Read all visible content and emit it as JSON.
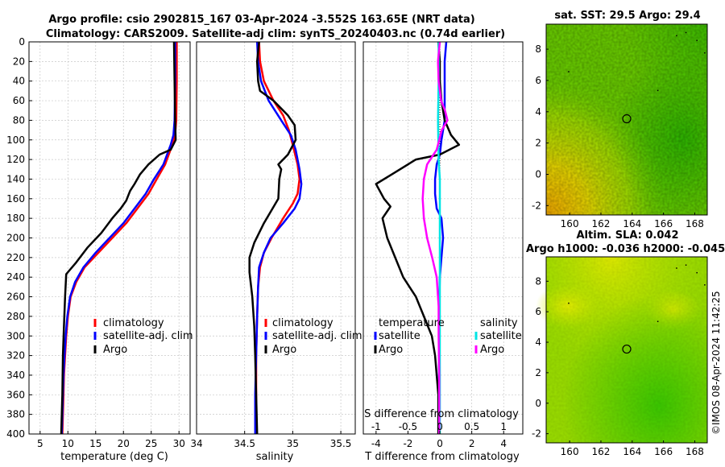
{
  "title": {
    "line1": "Argo profile: csio 2902815_167 03-Apr-2024 -3.552S 163.65E (NRT data)",
    "line2": "Climatology: CARS2009. Satellite-adj clim: synTS_20240403.nc (0.74d earlier)"
  },
  "colors": {
    "climatology": "#ff0000",
    "satellite": "#0000ff",
    "argo": "#000000",
    "sal_satellite": "#00e5e5",
    "sal_argo": "#ff00ff",
    "grid": "#c8c8c8"
  },
  "chart_data": [
    {
      "type": "line",
      "id": "temperature",
      "xlabel": "temperature (deg C)",
      "ylabel": "depth",
      "xlim": [
        3,
        32
      ],
      "ylim": [
        0,
        400
      ],
      "xticks": [
        5,
        10,
        15,
        20,
        25,
        30
      ],
      "xtick_labels": [
        "5",
        "10",
        "15",
        "20",
        "25",
        "30"
      ],
      "yticks": [
        0,
        20,
        40,
        60,
        80,
        100,
        120,
        140,
        160,
        180,
        200,
        220,
        240,
        260,
        280,
        300,
        320,
        340,
        360,
        380,
        400
      ],
      "legend": [
        "climatology",
        "satellite-adj. clim",
        "Argo"
      ],
      "series": [
        {
          "name": "climatology",
          "color": "#ff0000",
          "points": [
            [
              29.6,
              0
            ],
            [
              29.6,
              40
            ],
            [
              29.5,
              80
            ],
            [
              29.3,
              95
            ],
            [
              28.8,
              105
            ],
            [
              27.5,
              125
            ],
            [
              26,
              140
            ],
            [
              24.5,
              155
            ],
            [
              22.5,
              170
            ],
            [
              20.5,
              185
            ],
            [
              18,
              200
            ],
            [
              15.5,
              215
            ],
            [
              13,
              230
            ],
            [
              11.5,
              245
            ],
            [
              10.5,
              260
            ],
            [
              10,
              280
            ],
            [
              9.7,
              300
            ],
            [
              9.5,
              320
            ],
            [
              9.3,
              340
            ],
            [
              9.2,
              360
            ],
            [
              9.1,
              380
            ],
            [
              9,
              400
            ]
          ]
        },
        {
          "name": "satellite-adj. clim",
          "color": "#0000ff",
          "points": [
            [
              29.3,
              0
            ],
            [
              29.3,
              40
            ],
            [
              29.2,
              80
            ],
            [
              29,
              95
            ],
            [
              28.5,
              105
            ],
            [
              27.2,
              125
            ],
            [
              25.5,
              140
            ],
            [
              24,
              155
            ],
            [
              22,
              170
            ],
            [
              20,
              185
            ],
            [
              17.5,
              200
            ],
            [
              15,
              215
            ],
            [
              12.8,
              230
            ],
            [
              11.3,
              245
            ],
            [
              10.4,
              260
            ],
            [
              9.9,
              280
            ],
            [
              9.6,
              300
            ],
            [
              9.4,
              320
            ],
            [
              9.2,
              340
            ],
            [
              9.1,
              360
            ],
            [
              9,
              380
            ],
            [
              8.9,
              400
            ]
          ]
        },
        {
          "name": "Argo",
          "color": "#000000",
          "points": [
            [
              29.1,
              0
            ],
            [
              29.2,
              40
            ],
            [
              29.3,
              80
            ],
            [
              29.4,
              100
            ],
            [
              28.5,
              110
            ],
            [
              26.5,
              115
            ],
            [
              24.5,
              125
            ],
            [
              23,
              135
            ],
            [
              22,
              145
            ],
            [
              21.2,
              152
            ],
            [
              20.5,
              162
            ],
            [
              19.5,
              170
            ],
            [
              18,
              180
            ],
            [
              16,
              195
            ],
            [
              13.5,
              210
            ],
            [
              11.5,
              225
            ],
            [
              9.7,
              237
            ],
            [
              9.5,
              260
            ],
            [
              9.3,
              290
            ],
            [
              9.1,
              320
            ],
            [
              9,
              360
            ],
            [
              8.8,
              400
            ]
          ]
        }
      ]
    },
    {
      "type": "line",
      "id": "salinity",
      "xlabel": "salinity",
      "xlim": [
        34,
        35.65
      ],
      "ylim": [
        0,
        400
      ],
      "xticks": [
        34,
        34.5,
        35,
        35.5
      ],
      "xtick_labels": [
        "34",
        "34.5",
        "35",
        "35.5"
      ],
      "legend": [
        "climatology",
        "satellite-adj. clim",
        "Argo"
      ],
      "series": [
        {
          "name": "climatology",
          "color": "#ff0000",
          "points": [
            [
              34.65,
              0
            ],
            [
              34.66,
              20
            ],
            [
              34.7,
              40
            ],
            [
              34.8,
              60
            ],
            [
              34.9,
              75
            ],
            [
              34.96,
              90
            ],
            [
              35,
              105
            ],
            [
              35.05,
              125
            ],
            [
              35.07,
              140
            ],
            [
              35.05,
              155
            ],
            [
              35,
              165
            ],
            [
              34.9,
              180
            ],
            [
              34.78,
              200
            ],
            [
              34.7,
              215
            ],
            [
              34.66,
              230
            ],
            [
              34.64,
              250
            ],
            [
              34.63,
              280
            ],
            [
              34.62,
              320
            ],
            [
              34.62,
              360
            ],
            [
              34.62,
              400
            ]
          ]
        },
        {
          "name": "satellite-adj. clim",
          "color": "#0000ff",
          "points": [
            [
              34.63,
              0
            ],
            [
              34.64,
              20
            ],
            [
              34.67,
              40
            ],
            [
              34.75,
              60
            ],
            [
              34.88,
              80
            ],
            [
              34.98,
              95
            ],
            [
              35.03,
              110
            ],
            [
              35.07,
              130
            ],
            [
              35.09,
              145
            ],
            [
              35.07,
              160
            ],
            [
              35.02,
              170
            ],
            [
              34.9,
              185
            ],
            [
              34.77,
              200
            ],
            [
              34.7,
              215
            ],
            [
              34.65,
              230
            ],
            [
              34.64,
              250
            ],
            [
              34.63,
              280
            ],
            [
              34.62,
              320
            ],
            [
              34.61,
              360
            ],
            [
              34.61,
              400
            ]
          ]
        },
        {
          "name": "Argo",
          "color": "#000000",
          "points": [
            [
              34.65,
              0
            ],
            [
              34.63,
              20
            ],
            [
              34.64,
              40
            ],
            [
              34.66,
              50
            ],
            [
              34.8,
              60
            ],
            [
              34.95,
              75
            ],
            [
              35.02,
              85
            ],
            [
              35.03,
              100
            ],
            [
              34.95,
              115
            ],
            [
              34.85,
              125
            ],
            [
              34.88,
              130
            ],
            [
              34.86,
              140
            ],
            [
              34.85,
              160
            ],
            [
              34.7,
              185
            ],
            [
              34.6,
              205
            ],
            [
              34.55,
              220
            ],
            [
              34.55,
              235
            ],
            [
              34.58,
              260
            ],
            [
              34.6,
              290
            ],
            [
              34.61,
              320
            ],
            [
              34.62,
              360
            ],
            [
              34.63,
              400
            ]
          ]
        }
      ]
    },
    {
      "type": "line",
      "id": "difference",
      "xlabel": "T difference from climatology",
      "x2label": "S difference from climatology",
      "xlim": [
        -4.8,
        5.2
      ],
      "ylim": [
        0,
        400
      ],
      "xticks": [
        -4,
        -2,
        0,
        2,
        4
      ],
      "xtick_labels": [
        "-4",
        "-2",
        "0",
        "2",
        "4"
      ],
      "x2lim": [
        -1.2,
        1.3
      ],
      "x2ticks": [
        -1,
        -0.5,
        0,
        0.5,
        1
      ],
      "x2tick_labels": [
        "-1",
        "-0.5",
        "0",
        "0.5",
        "1"
      ],
      "legend_left_title": "temperature",
      "legend_right_title": "salinity",
      "legend_left": [
        "satellite",
        "Argo"
      ],
      "legend_right": [
        "satellite",
        "Argo"
      ],
      "series": [
        {
          "name": "T satellite",
          "axis": "T",
          "color": "#0000ff",
          "points": [
            [
              0.4,
              0
            ],
            [
              0.3,
              20
            ],
            [
              0.3,
              40
            ],
            [
              0.3,
              60
            ],
            [
              0.3,
              80
            ],
            [
              0.1,
              100
            ],
            [
              0,
              115
            ],
            [
              -0.2,
              125
            ],
            [
              -0.3,
              140
            ],
            [
              -0.3,
              155
            ],
            [
              -0.2,
              170
            ],
            [
              0.1,
              180
            ],
            [
              0.2,
              200
            ],
            [
              0.1,
              220
            ],
            [
              0,
              240
            ],
            [
              -0.05,
              280
            ],
            [
              -0.05,
              320
            ],
            [
              -0.05,
              400
            ]
          ]
        },
        {
          "name": "T Argo",
          "axis": "T",
          "color": "#000000",
          "points": [
            [
              -0.1,
              0
            ],
            [
              0,
              20
            ],
            [
              0,
              40
            ],
            [
              0.1,
              60
            ],
            [
              0.3,
              80
            ],
            [
              0.7,
              95
            ],
            [
              1.2,
              105
            ],
            [
              0,
              115
            ],
            [
              -1.5,
              120
            ],
            [
              -3,
              135
            ],
            [
              -4,
              145
            ],
            [
              -3.5,
              160
            ],
            [
              -3.1,
              168
            ],
            [
              -3.6,
              180
            ],
            [
              -3.3,
              200
            ],
            [
              -2.8,
              220
            ],
            [
              -2.3,
              240
            ],
            [
              -1.5,
              260
            ],
            [
              -1,
              280
            ],
            [
              -0.5,
              300
            ],
            [
              -0.3,
              320
            ],
            [
              -0.2,
              340
            ],
            [
              -0.1,
              360
            ],
            [
              -0.1,
              400
            ]
          ]
        },
        {
          "name": "S satellite",
          "axis": "S",
          "color": "#00e5e5",
          "points": [
            [
              -0.02,
              0
            ],
            [
              -0.02,
              40
            ],
            [
              -0.03,
              80
            ],
            [
              -0.02,
              120
            ],
            [
              0,
              140
            ],
            [
              0,
              160
            ],
            [
              0,
              200
            ],
            [
              0,
              250
            ],
            [
              0,
              320
            ],
            [
              0,
              400
            ]
          ]
        },
        {
          "name": "S Argo",
          "axis": "S",
          "color": "#ff00ff",
          "points": [
            [
              0,
              0
            ],
            [
              -0.03,
              20
            ],
            [
              -0.02,
              40
            ],
            [
              0.02,
              60
            ],
            [
              0.08,
              70
            ],
            [
              0.12,
              80
            ],
            [
              0.03,
              90
            ],
            [
              -0.05,
              110
            ],
            [
              -0.2,
              125
            ],
            [
              -0.25,
              140
            ],
            [
              -0.27,
              160
            ],
            [
              -0.25,
              180
            ],
            [
              -0.2,
              200
            ],
            [
              -0.12,
              220
            ],
            [
              -0.05,
              240
            ],
            [
              -0.02,
              270
            ],
            [
              -0.02,
              300
            ],
            [
              -0.01,
              340
            ],
            [
              -0.01,
              400
            ]
          ]
        }
      ]
    },
    {
      "type": "heatmap",
      "id": "sst_map",
      "title": "sat. SST: 29.5 Argo: 29.4",
      "xlim": [
        158.5,
        168.8
      ],
      "ylim": [
        -2.6,
        9.6
      ],
      "xticks": [
        160,
        162,
        164,
        166,
        168
      ],
      "yticks": [
        -2,
        0,
        2,
        4,
        6,
        8
      ],
      "marker": {
        "lon": 163.65,
        "lat": 3.55
      }
    },
    {
      "type": "heatmap",
      "id": "sla_map",
      "title_line1": "Altim. SLA: 0.042",
      "title_line2": "Argo h1000: -0.036 h2000: -0.045",
      "xlim": [
        158.5,
        168.8
      ],
      "ylim": [
        -2.6,
        9.6
      ],
      "xticks": [
        160,
        162,
        164,
        166,
        168
      ],
      "yticks": [
        -2,
        0,
        2,
        4,
        6,
        8
      ],
      "marker": {
        "lon": 163.65,
        "lat": 3.55
      }
    }
  ],
  "footer": {
    "copyright": "©IMOS 08-Apr-2024 11:42:25"
  }
}
